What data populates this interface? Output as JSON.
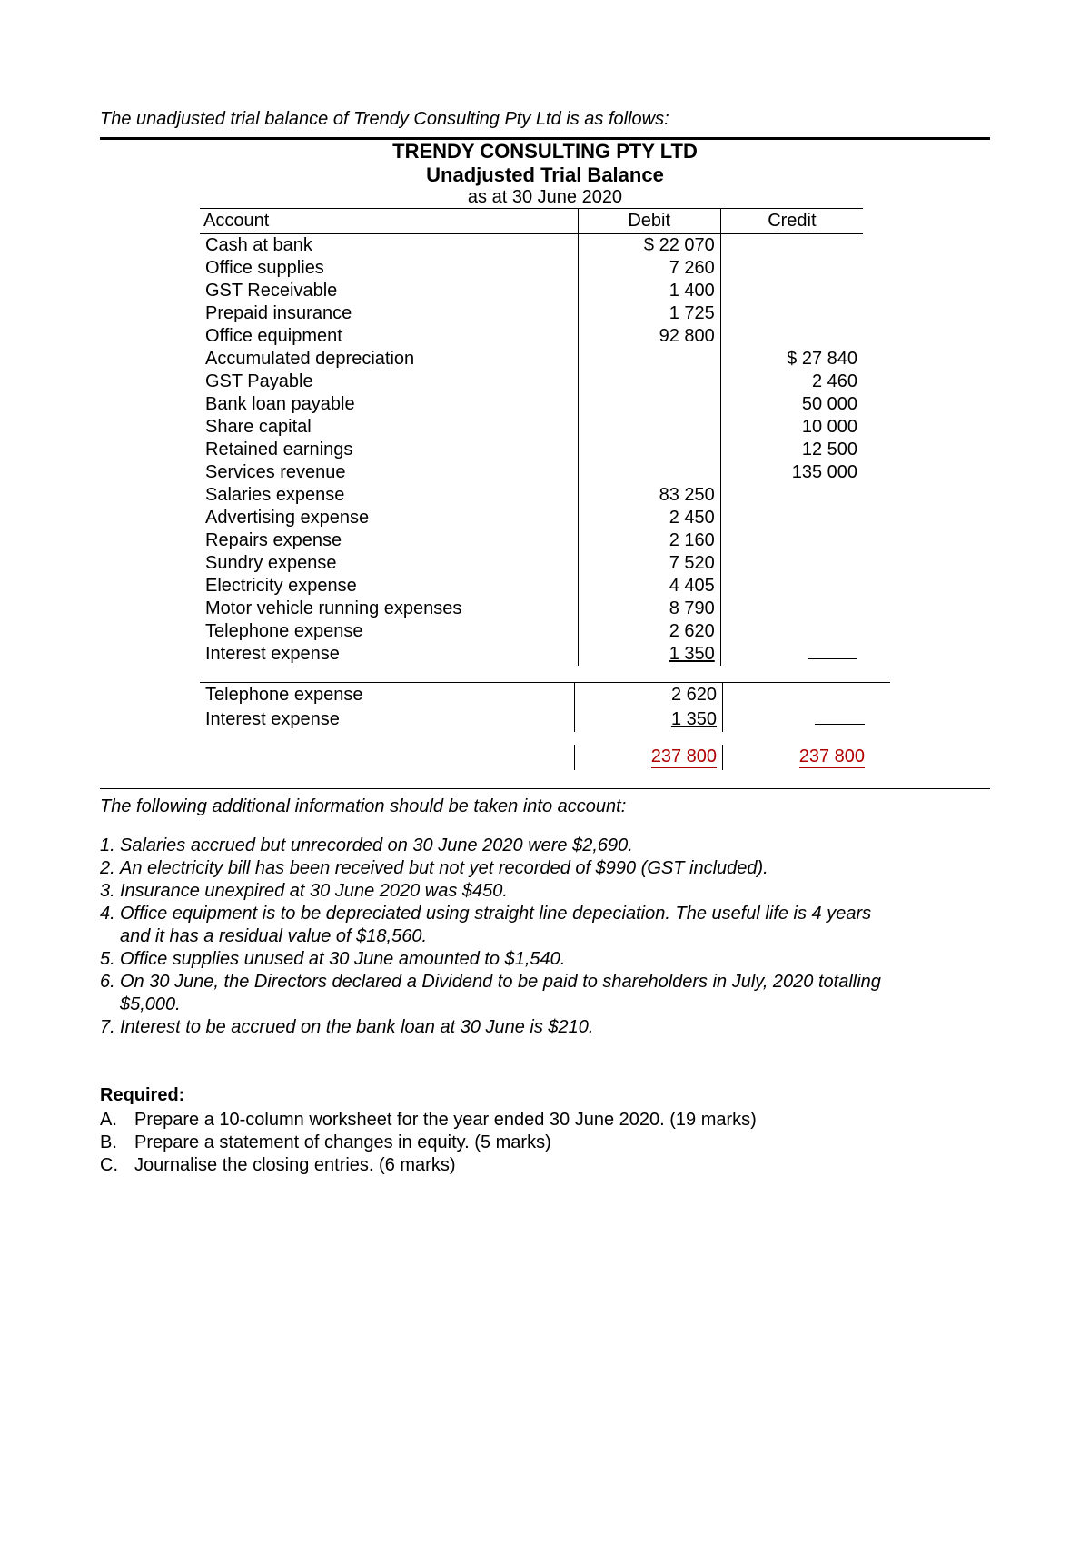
{
  "intro": "The unadjusted trial balance of Trendy Consulting Pty Ltd is as follows:",
  "header": {
    "company": "TRENDY CONSULTING PTY LTD",
    "report": "Unadjusted Trial Balance",
    "asat": "as at 30 June 2020"
  },
  "columns": {
    "account": "Account",
    "debit": "Debit",
    "credit": "Credit"
  },
  "rows": [
    {
      "account": "Cash at bank",
      "debit": "$ 22 070",
      "credit": ""
    },
    {
      "account": "Office supplies",
      "debit": "7 260",
      "credit": ""
    },
    {
      "account": "GST Receivable",
      "debit": "1 400",
      "credit": ""
    },
    {
      "account": "Prepaid insurance",
      "debit": "1 725",
      "credit": ""
    },
    {
      "account": "Office equipment",
      "debit": "92 800",
      "credit": ""
    },
    {
      "account": "Accumulated depreciation",
      "debit": "",
      "credit": "$  27 840"
    },
    {
      "account": "GST Payable",
      "debit": "",
      "credit": "2 460"
    },
    {
      "account": "Bank loan payable",
      "debit": "",
      "credit": "50 000"
    },
    {
      "account": "Share capital",
      "debit": "",
      "credit": "10 000"
    },
    {
      "account": "Retained earnings",
      "debit": "",
      "credit": "12 500"
    },
    {
      "account": "Services revenue",
      "debit": "",
      "credit": "135 000"
    },
    {
      "account": "Salaries expense",
      "debit": "83 250",
      "credit": ""
    },
    {
      "account": "Advertising expense",
      "debit": "2 450",
      "credit": ""
    },
    {
      "account": "Repairs expense",
      "debit": "2 160",
      "credit": ""
    },
    {
      "account": "Sundry expense",
      "debit": "7 520",
      "credit": ""
    },
    {
      "account": "Electricity expense",
      "debit": "4 405",
      "credit": ""
    },
    {
      "account": "Motor vehicle running expenses",
      "debit": "8 790",
      "credit": ""
    },
    {
      "account": "Telephone expense",
      "debit": "2 620",
      "credit": ""
    },
    {
      "account": "Interest expense",
      "debit": "1 350",
      "credit": ""
    }
  ],
  "fragment": {
    "row1": {
      "account": "Telephone expense",
      "debit": "2 620",
      "credit": ""
    },
    "row2": {
      "account": "Interest expense",
      "debit": "1 350",
      "credit": ""
    },
    "total_debit": "237 800",
    "total_credit": "237 800"
  },
  "info": {
    "lead": "The following additional information should be taken into account:",
    "items": [
      {
        "n": "1.",
        "t": "Salaries accrued but unrecorded on 30 June 2020 were $2,690."
      },
      {
        "n": "2.",
        "t": "An electricity bill has been received but not yet recorded of $990 (GST included)."
      },
      {
        "n": "3.",
        "t": "Insurance unexpired at 30 June 2020 was $450."
      },
      {
        "n": "4.",
        "t": "Office equipment is to be depreciated using straight line depeciation. The useful life is 4 years"
      },
      {
        "n": "",
        "t": "and it has a residual value of $18,560.",
        "indent": true
      },
      {
        "n": "5.",
        "t": "Office supplies unused at 30 June amounted to $1,540."
      },
      {
        "n": "6.",
        "t": "On 30 June, the Directors declared a Dividend to be paid to shareholders in July, 2020 totalling"
      },
      {
        "n": "",
        "t": "$5,000.",
        "indent": true
      },
      {
        "n": "7.",
        "t": "Interest to be accrued on the bank loan at 30 June is $210."
      }
    ]
  },
  "required": {
    "hdr": "Required:",
    "items": [
      {
        "l": "A.",
        "t": "Prepare a 10-column worksheet for the year ended 30 June 2020. (19 marks)"
      },
      {
        "l": "B.",
        "t": "Prepare a statement of changes in equity. (5 marks)"
      },
      {
        "l": "C.",
        "t": "Journalise the closing entries. (6 marks)"
      }
    ]
  }
}
